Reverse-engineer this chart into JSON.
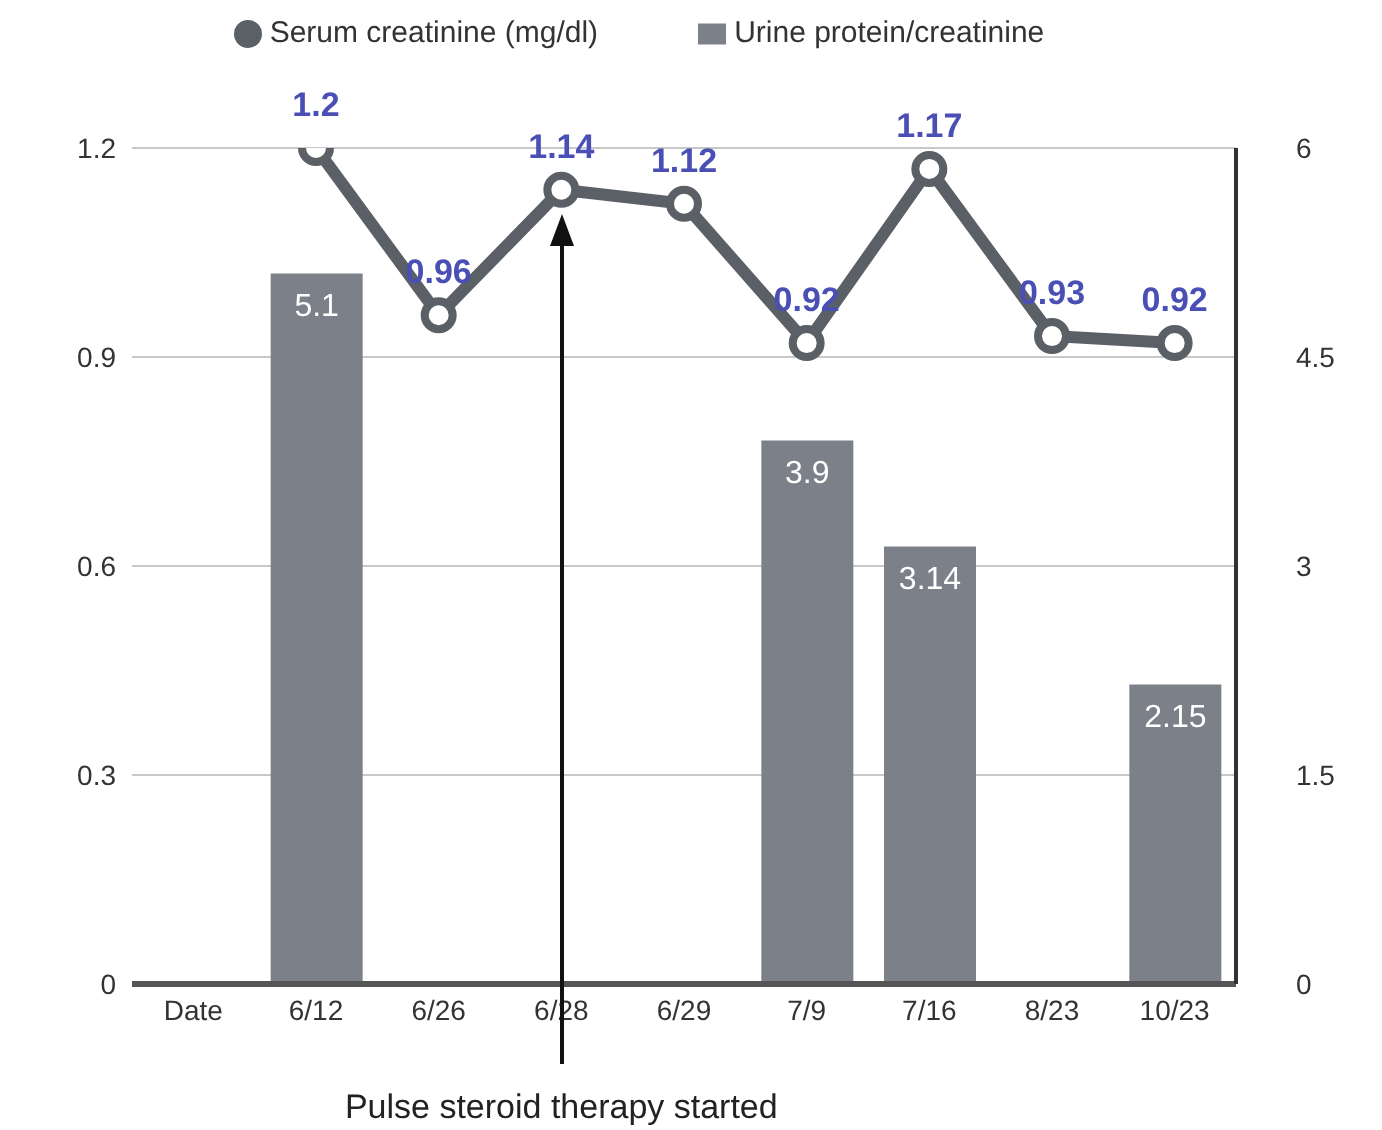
{
  "chart_data": {
    "type": "bar",
    "categories": [
      "Date",
      "6/12",
      "6/26",
      "6/28",
      "6/29",
      "7/9",
      "7/16",
      "8/23",
      "10/23"
    ],
    "series": [
      {
        "name": "Serum creatinine (mg/dl)",
        "type": "line",
        "color": "#5b5f66",
        "values": [
          null,
          1.2,
          0.96,
          1.14,
          1.12,
          0.92,
          1.17,
          0.93,
          0.92
        ]
      },
      {
        "name": "Urine protein/creatinine",
        "axis": "y2",
        "color": "#7b8089",
        "values": [
          null,
          5.1,
          null,
          null,
          null,
          3.9,
          3.14,
          null,
          2.15
        ]
      }
    ],
    "ylim": [
      0,
      1.2
    ],
    "yticks": [
      0,
      0.3,
      0.6,
      0.9,
      1.2
    ],
    "y2lim": [
      0,
      6
    ],
    "y2ticks": [
      0,
      1.5,
      3,
      4.5,
      6
    ],
    "data_labels": true,
    "grid": "y",
    "legend": "top",
    "marker": "circle",
    "line_style": "solid",
    "annotations": [
      {
        "text": "Pulse steroid therapy started",
        "x": "6/28"
      }
    ]
  }
}
